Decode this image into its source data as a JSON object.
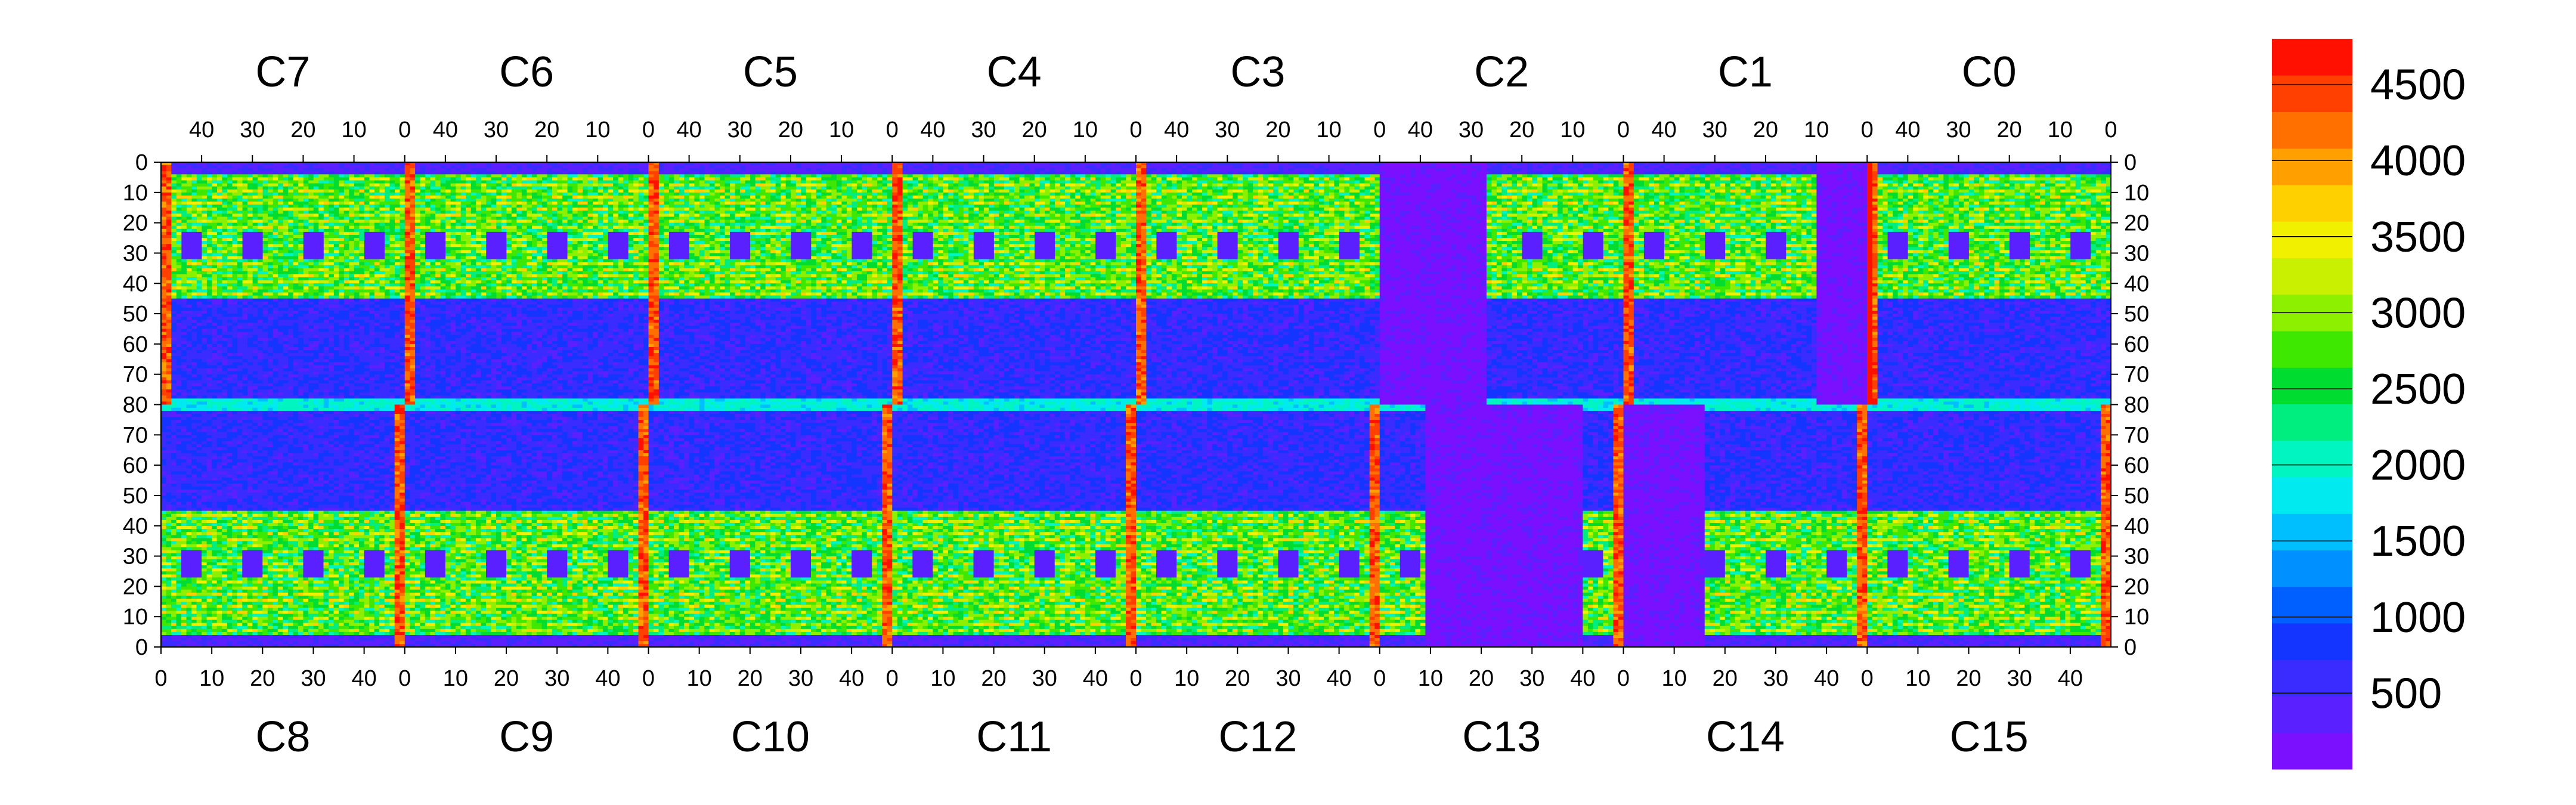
{
  "chart_data": {
    "type": "heatmap",
    "title": "",
    "xlabel": "",
    "ylabel": "",
    "top_chips": [
      "C7",
      "C6",
      "C5",
      "C4",
      "C3",
      "C2",
      "C1",
      "C0"
    ],
    "bottom_chips": [
      "C8",
      "C9",
      "C10",
      "C11",
      "C12",
      "C13",
      "C14",
      "C15"
    ],
    "chip_columns": 48,
    "chip_rows": 80,
    "top_axis_ticks": [
      "40",
      "30",
      "20",
      "10",
      "0"
    ],
    "bottom_axis_ticks": [
      "0",
      "10",
      "20",
      "30",
      "40"
    ],
    "y_ticks_top_half": [
      "0",
      "10",
      "20",
      "30",
      "40",
      "50",
      "60",
      "70",
      "80"
    ],
    "y_ticks_bottom_half": [
      "70",
      "60",
      "50",
      "40",
      "30",
      "20",
      "10",
      "0"
    ],
    "colorbar": {
      "min": 0,
      "max": 4800,
      "tick_labels": [
        "500",
        "1000",
        "1500",
        "2000",
        "2500",
        "3000",
        "3500",
        "4000",
        "4500"
      ],
      "tick_values": [
        500,
        1000,
        1500,
        2000,
        2500,
        3000,
        3500,
        4000,
        4500
      ],
      "colors": [
        "#7a10ff",
        "#5a20ff",
        "#3a2bff",
        "#1435ff",
        "#0060ff",
        "#0090ff",
        "#00bfff",
        "#00eaf0",
        "#00f5c0",
        "#00ee80",
        "#00dd30",
        "#3ee800",
        "#8cf000",
        "#c8f000",
        "#f0f000",
        "#ffd000",
        "#ffa000",
        "#ff7000",
        "#ff4000",
        "#ff1000"
      ]
    },
    "value_profile": {
      "background": 300,
      "sensor_band": 2600,
      "dense_band": 3100,
      "chip_edge_column": 4700,
      "central_row": 1800,
      "low_square": 250,
      "c13_column_region": 220
    }
  }
}
